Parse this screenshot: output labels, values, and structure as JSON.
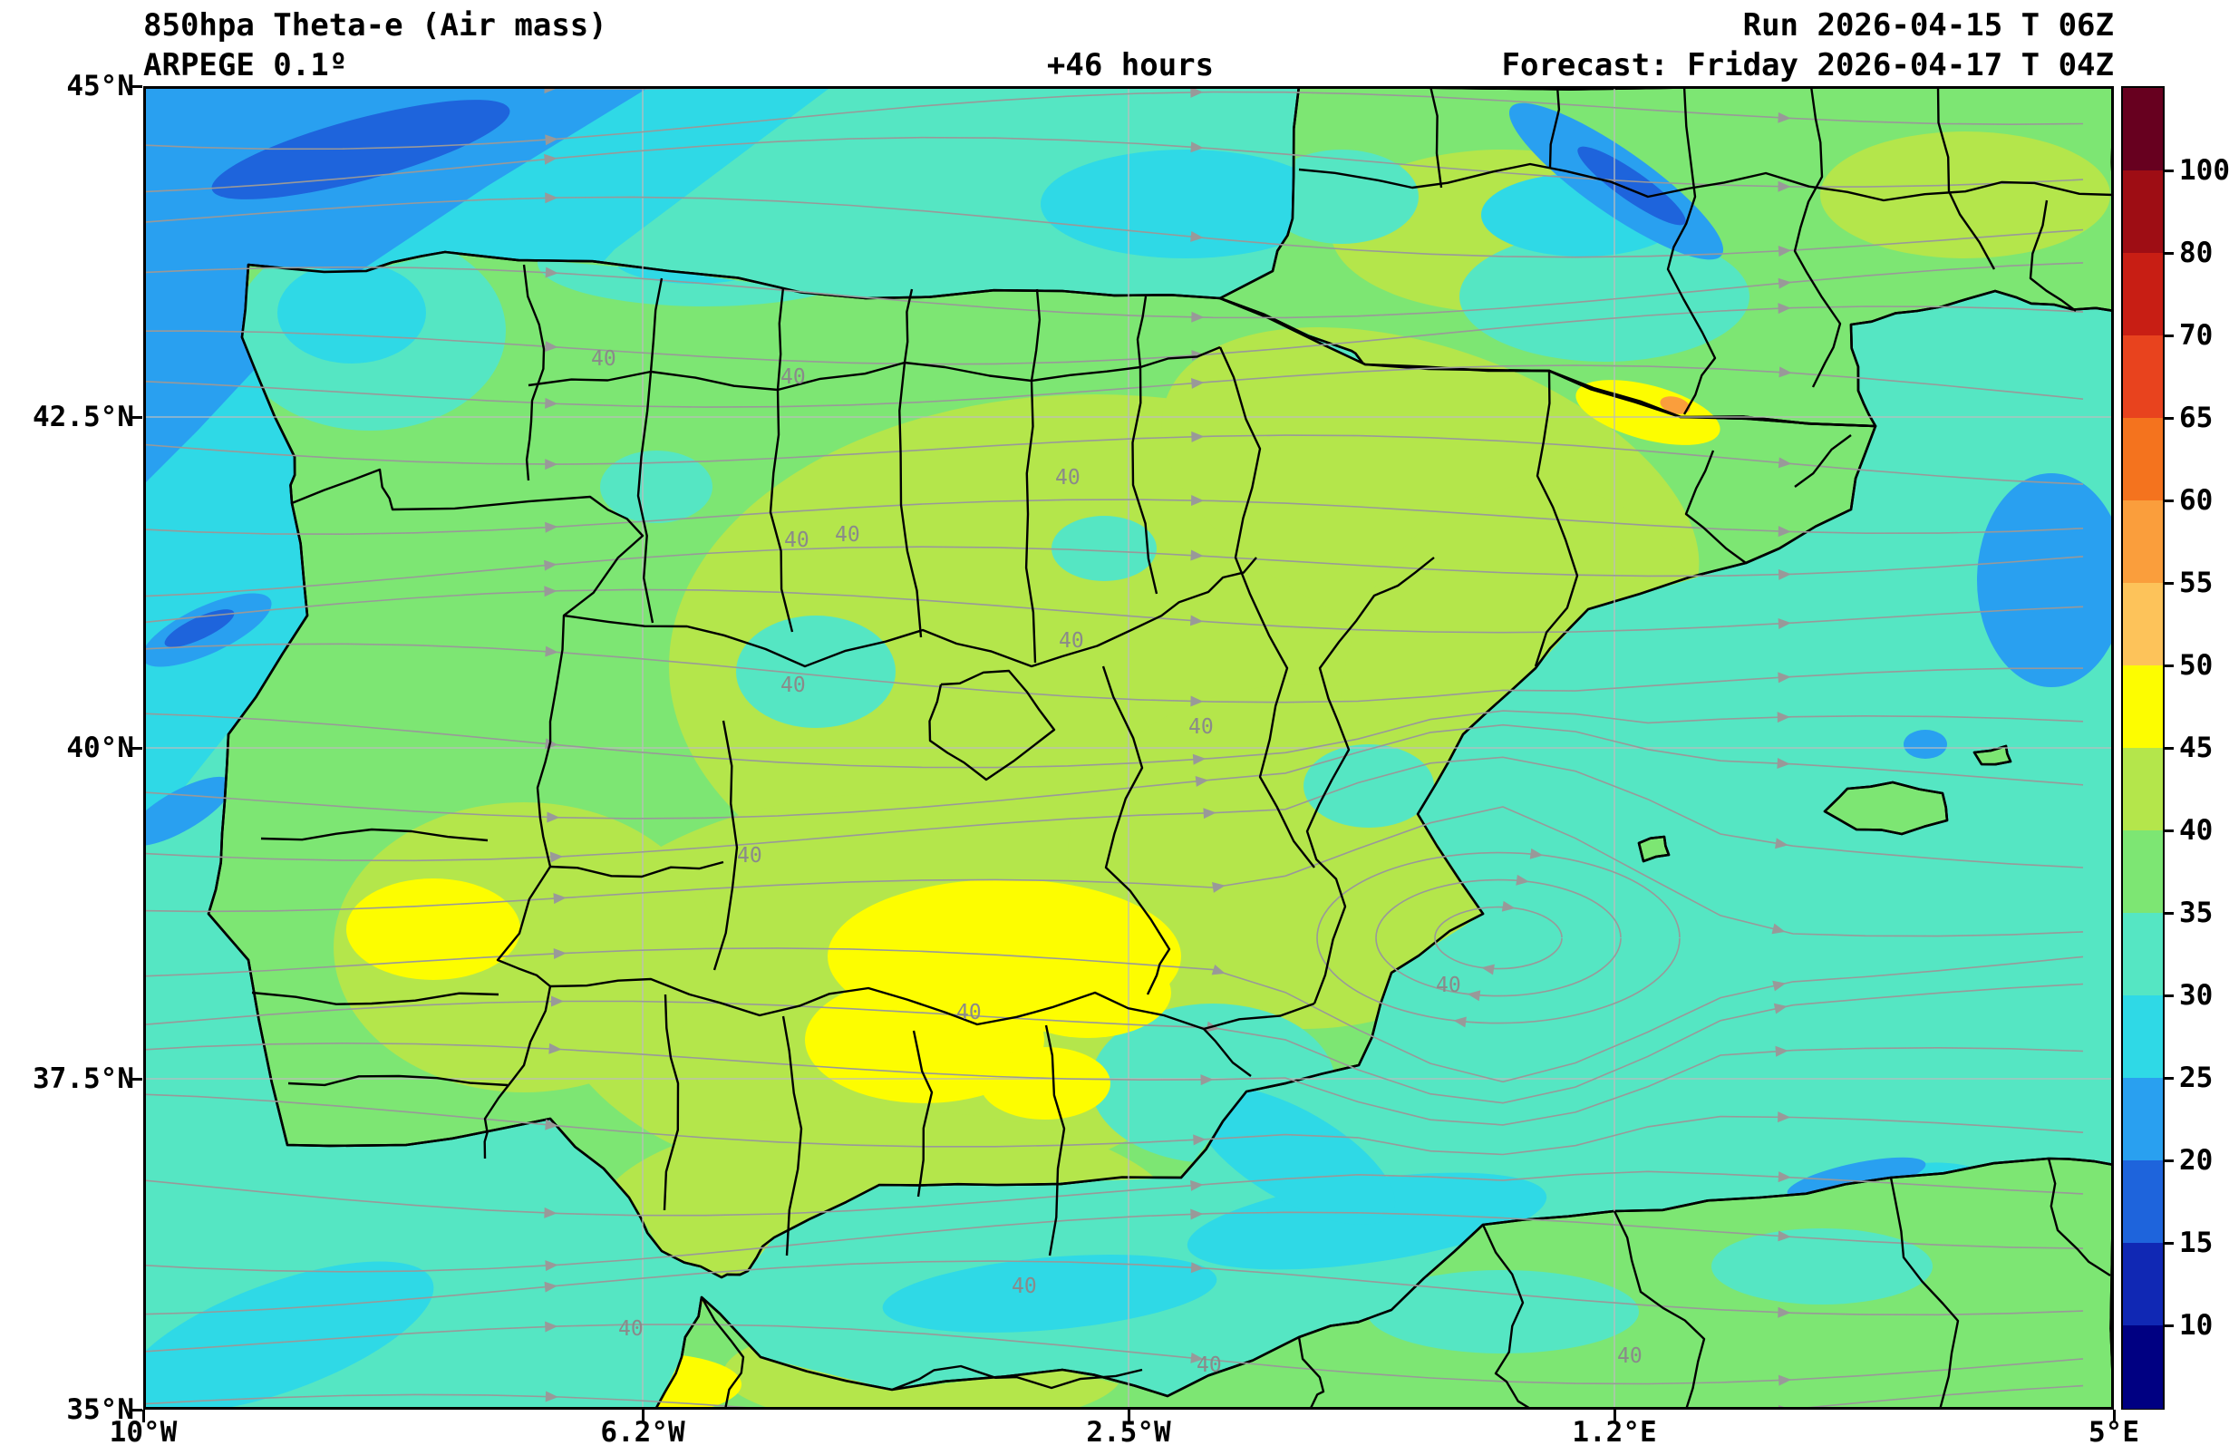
{
  "header": {
    "title": "850hpa Theta-e (Air mass)",
    "model": "ARPEGE 0.1º",
    "forecast_hour": "+46 hours",
    "run": "Run 2026-04-15 T 06Z",
    "forecast": "Forecast: Friday 2026-04-17 T 04Z"
  },
  "axes": {
    "y_ticks": [
      "45°N",
      "42.5°N",
      "40°N",
      "37.5°N",
      "35°N"
    ],
    "x_ticks": [
      "10°W",
      "6.2°W",
      "2.5°W",
      "1.2°E",
      "5°E"
    ]
  },
  "colorbar": {
    "tick_labels": [
      "100",
      "80",
      "70",
      "65",
      "60",
      "55",
      "50",
      "45",
      "40",
      "35",
      "30",
      "25",
      "20",
      "15",
      "10"
    ],
    "segment_colors_top_to_bottom": [
      "#67001f",
      "#9e0d14",
      "#c81e14",
      "#e8431e",
      "#f4731e",
      "#fa9e3c",
      "#fdc35a",
      "#fdfd00",
      "#b4e64b",
      "#7de673",
      "#55e6c3",
      "#2fd9e6",
      "#29a0f0",
      "#1e64dc",
      "#1028b4",
      "#000082"
    ]
  },
  "map": {
    "contour_label": "40",
    "fill_colors": {
      "land_green": "#7de673",
      "land_yellow_green": "#b4e64b",
      "yellow": "#fdfd00",
      "orange": "#fa9e3c",
      "aqua": "#55e6c3",
      "cyan": "#2fd9e6",
      "blue": "#29a0f0",
      "deep_blue": "#1e64dc"
    },
    "boundary_color": "#000000",
    "streamline_color": "#999999",
    "grid_color": "#bdbdbd",
    "contour_label_color": "#8a8a8a"
  },
  "chart_data": {
    "type": "heatmap",
    "subtype": "filled contour map with wind streamlines",
    "title": "850hpa Theta-e (Air mass)",
    "model": "ARPEGE 0.1º",
    "run": "2026-04-15 06Z",
    "forecast_valid": "Friday 2026-04-17 04Z",
    "forecast_lead_hours": 46,
    "region": "Iberian Peninsula and western Mediterranean",
    "x_axis": {
      "ticks": [
        "10°W",
        "6.2°W",
        "2.5°W",
        "1.2°E",
        "5°E"
      ],
      "range_deg_lon": [
        -10,
        5
      ]
    },
    "y_axis": {
      "ticks": [
        "45°N",
        "42.5°N",
        "40°N",
        "37.5°N",
        "35°N"
      ],
      "range_deg_lat": [
        35,
        45
      ]
    },
    "color_levels": [
      10,
      15,
      20,
      25,
      30,
      35,
      40,
      45,
      50,
      55,
      60,
      65,
      70,
      80,
      100
    ],
    "labeled_contour_value": 40,
    "field_reading": {
      "land_interior_theta_e": "40-45 (yellow-green over central plateau, Ebro valley, south and east Spain)",
      "land_fringe_theta_e": "35-40 (green over Galicia, north coast, Portugal, France)",
      "mediterranean_sea_theta_e": "30-35 (aquamarine)",
      "atlantic_northwest_theta_e": "20-30 (cyan with blue 20-25 band in far NW corner)",
      "local_maxima_theta_e": "45-50 yellow patches over central Spain, SW Spain, Andalusia and near 1W 42.5N (tiny 50-55 orange spot)",
      "local_minima_theta_e": "20-25 blue streaks off Portugal, east of Balearics, NE corner and Alboran area",
      "circulation_note": "closed cyclonic streamline vortex near 0.3E 38.6N"
    },
    "overlays": [
      "wind streamlines (gray with arrows)",
      "administrative boundaries (black)",
      "latitude-longitude grid (thin gray)"
    ],
    "legend_position": "right colorbar"
  }
}
